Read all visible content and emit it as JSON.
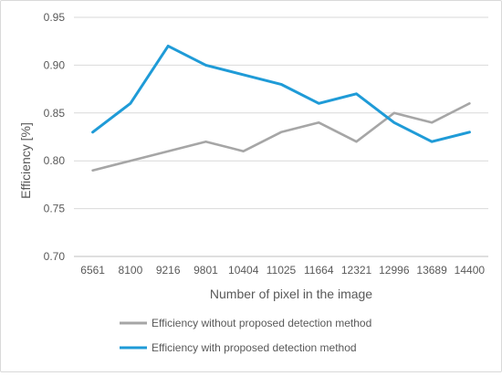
{
  "chart_data": {
    "type": "line",
    "title": "",
    "xlabel": "Number of pixel in the image",
    "ylabel": "Efficiency [%]",
    "categories": [
      "6561",
      "8100",
      "9216",
      "9801",
      "10404",
      "11025",
      "11664",
      "12321",
      "12996",
      "13689",
      "14400"
    ],
    "ylim": [
      0.7,
      0.95
    ],
    "yticks": [
      "0.70",
      "0.75",
      "0.80",
      "0.85",
      "0.90",
      "0.95"
    ],
    "grid": true,
    "legend_position": "bottom",
    "series": [
      {
        "name": "Efficiency without proposed detection method",
        "color": "#a6a6a6",
        "values": [
          0.79,
          0.8,
          0.81,
          0.82,
          0.81,
          0.83,
          0.84,
          0.82,
          0.85,
          0.84,
          0.86
        ]
      },
      {
        "name": "Efficiency with proposed detection method",
        "color": "#1f9bd7",
        "values": [
          0.83,
          0.86,
          0.92,
          0.9,
          0.89,
          0.88,
          0.86,
          0.87,
          0.84,
          0.82,
          0.83
        ]
      }
    ]
  }
}
